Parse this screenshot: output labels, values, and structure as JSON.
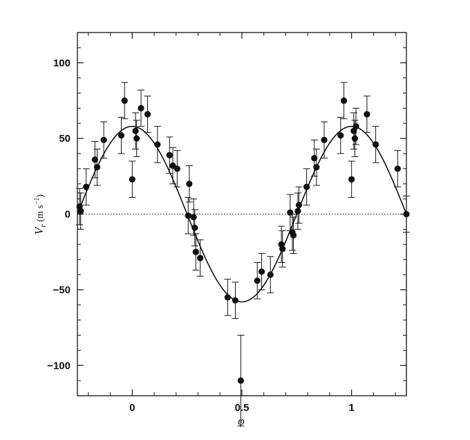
{
  "chart_data": {
    "type": "scatter",
    "xlabel": "φ",
    "ylabel": {
      "main": "V",
      "sub": "r",
      "unit_open": " (m s",
      "unit_exp": "−1",
      "unit_close": ")"
    },
    "xlim": [
      -0.25,
      1.25
    ],
    "ylim": [
      -120,
      120
    ],
    "xticks": [
      0,
      0.5,
      1
    ],
    "xtick_labels": [
      "0",
      "0.5",
      "1"
    ],
    "yticks": [
      -100,
      -50,
      0,
      50,
      100
    ],
    "ytick_labels": [
      "−100",
      "−50",
      "0",
      "50",
      "100"
    ],
    "grid": false,
    "zero_line": "dotted",
    "fit_curve": {
      "type": "sine",
      "amplitude": 58,
      "period": 1,
      "peak_phase": 0.0
    },
    "series": [
      {
        "points": [
          {
            "x": -0.24,
            "y": 5,
            "err": 12
          },
          {
            "x": -0.235,
            "y": 2,
            "err": 12
          },
          {
            "x": -0.21,
            "y": 18,
            "err": 12
          },
          {
            "x": -0.17,
            "y": 36,
            "err": 12
          },
          {
            "x": -0.16,
            "y": 31,
            "err": 12
          },
          {
            "x": -0.13,
            "y": 49,
            "err": 12
          },
          {
            "x": -0.05,
            "y": 52,
            "err": 12
          },
          {
            "x": -0.035,
            "y": 75,
            "err": 12
          },
          {
            "x": 0.0,
            "y": 23,
            "err": 12
          },
          {
            "x": 0.015,
            "y": 55,
            "err": 12
          },
          {
            "x": 0.02,
            "y": 50,
            "err": 12
          },
          {
            "x": 0.04,
            "y": 70,
            "err": 12
          },
          {
            "x": 0.07,
            "y": 66,
            "err": 12
          },
          {
            "x": 0.115,
            "y": 46,
            "err": 12
          },
          {
            "x": 0.17,
            "y": 39,
            "err": 12
          },
          {
            "x": 0.185,
            "y": 32,
            "err": 12
          },
          {
            "x": 0.205,
            "y": 30,
            "err": 12
          },
          {
            "x": 0.255,
            "y": -1,
            "err": 12
          },
          {
            "x": 0.26,
            "y": 20,
            "err": 12
          },
          {
            "x": 0.28,
            "y": -2,
            "err": 12
          },
          {
            "x": 0.285,
            "y": -9,
            "err": 12
          },
          {
            "x": 0.29,
            "y": -25,
            "err": 12
          },
          {
            "x": 0.31,
            "y": -29,
            "err": 12
          },
          {
            "x": 0.435,
            "y": -55,
            "err": 12
          },
          {
            "x": 0.47,
            "y": -57,
            "err": 12
          },
          {
            "x": 0.495,
            "y": -110,
            "err": 30
          },
          {
            "x": 0.57,
            "y": -44,
            "err": 12
          },
          {
            "x": 0.59,
            "y": -38,
            "err": 12
          },
          {
            "x": 0.63,
            "y": -40,
            "err": 12
          },
          {
            "x": 0.68,
            "y": -20,
            "err": 12
          },
          {
            "x": 0.685,
            "y": -23,
            "err": 12
          },
          {
            "x": 0.72,
            "y": 1,
            "err": 12
          },
          {
            "x": 0.73,
            "y": -12,
            "err": 12
          },
          {
            "x": 0.735,
            "y": -14,
            "err": 12
          },
          {
            "x": 0.755,
            "y": 2,
            "err": 12
          },
          {
            "x": 0.76,
            "y": 6,
            "err": 12
          },
          {
            "x": 0.795,
            "y": 18,
            "err": 12
          },
          {
            "x": 0.83,
            "y": 37,
            "err": 12
          },
          {
            "x": 0.84,
            "y": 31,
            "err": 12
          },
          {
            "x": 0.875,
            "y": 49,
            "err": 12
          },
          {
            "x": 0.95,
            "y": 52,
            "err": 12
          },
          {
            "x": 0.965,
            "y": 75,
            "err": 12
          },
          {
            "x": 1.0,
            "y": 23,
            "err": 12
          },
          {
            "x": 1.01,
            "y": 55,
            "err": 12
          },
          {
            "x": 1.015,
            "y": 50,
            "err": 12
          },
          {
            "x": 1.02,
            "y": 58,
            "err": 12
          },
          {
            "x": 1.07,
            "y": 66,
            "err": 12
          },
          {
            "x": 1.11,
            "y": 46,
            "err": 12
          },
          {
            "x": 1.21,
            "y": 30,
            "err": 12
          },
          {
            "x": 1.25,
            "y": 0,
            "err": 12
          }
        ]
      }
    ]
  },
  "colors": {
    "ink": "#111111",
    "background": "#ffffff"
  }
}
